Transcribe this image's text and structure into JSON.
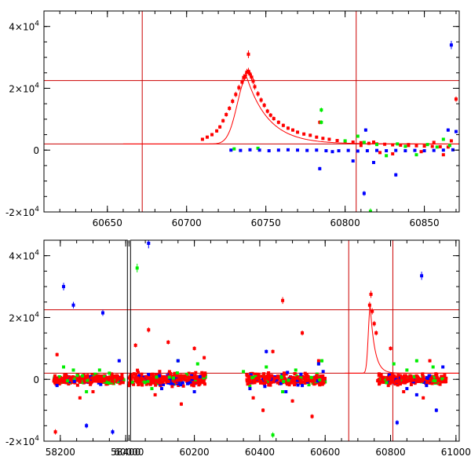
{
  "chart_data": [
    {
      "type": "scatter",
      "panel": "top",
      "xlim": [
        60610,
        60872
      ],
      "ylim": [
        -20000,
        45000
      ],
      "xticks": [
        {
          "value": 60650,
          "label": "60650"
        },
        {
          "value": 60700,
          "label": "60700"
        },
        {
          "value": 60750,
          "label": "60750"
        },
        {
          "value": 60800,
          "label": "60800"
        },
        {
          "value": 60850,
          "label": "60850"
        }
      ],
      "yticks": [
        {
          "value": 40000,
          "base": "4×10",
          "exp": "4"
        },
        {
          "value": 20000,
          "base": "2×10",
          "exp": "4"
        },
        {
          "value": 0,
          "base": "0",
          "exp": ""
        },
        {
          "value": -20000,
          "base": "-2×10",
          "exp": "4"
        }
      ],
      "vlines": [
        60672,
        60807
      ],
      "hlines": [
        22500,
        2000
      ],
      "model_curve": {
        "color": "#ff0000",
        "peak_x": 60738,
        "peak_y": 23500,
        "baseline": 2000,
        "rise": 6,
        "decay": 14,
        "x_start": 60660,
        "x_end": 60872
      },
      "colors": {
        "red": "#ff0000",
        "green": "#00ee00",
        "blue": "#0000ff",
        "lines": "#cc0000"
      },
      "series": [
        {
          "color_key": "red",
          "points": [
            [
              60710,
              3500
            ],
            [
              60713,
              4200
            ],
            [
              60716,
              5000
            ],
            [
              60719,
              6200
            ],
            [
              60721,
              7500
            ],
            [
              60723,
              9500
            ],
            [
              60725,
              11500
            ],
            [
              60727,
              13500
            ],
            [
              60729,
              15800
            ],
            [
              60731,
              18000
            ],
            [
              60733,
              20200
            ],
            [
              60735,
              22000
            ],
            [
              60736,
              23500
            ],
            [
              60737,
              24000
            ],
            [
              60738,
              25200
            ],
            [
              60739,
              25500
            ],
            [
              60740,
              24600
            ],
            [
              60741,
              23600
            ],
            [
              60742,
              22300
            ],
            [
              60743,
              20500
            ],
            [
              60745,
              18200
            ],
            [
              60747,
              16200
            ],
            [
              60749,
              14500
            ],
            [
              60751,
              12600
            ],
            [
              60753,
              11300
            ],
            [
              60755,
              10200
            ],
            [
              60758,
              9000
            ],
            [
              60761,
              8000
            ],
            [
              60764,
              7100
            ],
            [
              60767,
              6500
            ],
            [
              60770,
              5800
            ],
            [
              60774,
              5200
            ],
            [
              60778,
              4800
            ],
            [
              60782,
              4200
            ],
            [
              60786,
              3800
            ],
            [
              60790,
              3500
            ],
            [
              60795,
              3100
            ],
            [
              60800,
              2800
            ],
            [
              60805,
              2600
            ],
            [
              60810,
              2400
            ],
            [
              60815,
              2200
            ],
            [
              60820,
              2000
            ],
            [
              60825,
              1900
            ],
            [
              60830,
              1700
            ],
            [
              60835,
              1600
            ],
            [
              60840,
              1500
            ],
            [
              60845,
              1400
            ],
            [
              60850,
              1300
            ],
            [
              60855,
              1200
            ],
            [
              60860,
              1100
            ],
            [
              60865,
              1000
            ],
            [
              60870,
              16500
            ],
            [
              60739,
              31000
            ],
            [
              60784,
              9000
            ],
            [
              60810,
              1500
            ],
            [
              60818,
              2600
            ],
            [
              60822,
              -800
            ],
            [
              60830,
              -1200
            ],
            [
              60840,
              1800
            ],
            [
              60848,
              -500
            ],
            [
              60856,
              2500
            ],
            [
              60862,
              -1500
            ],
            [
              60867,
              3000
            ]
          ]
        },
        {
          "color_key": "green",
          "points": [
            [
              60785,
              13000
            ],
            [
              60785,
              9000
            ],
            [
              60800,
              3000
            ],
            [
              60808,
              4500
            ],
            [
              60812,
              2500
            ],
            [
              60820,
              1800
            ],
            [
              60826,
              -1800
            ],
            [
              60833,
              2000
            ],
            [
              60838,
              1200
            ],
            [
              60845,
              -1500
            ],
            [
              60852,
              1800
            ],
            [
              60858,
              1000
            ],
            [
              60862,
              3500
            ],
            [
              60866,
              1500
            ],
            [
              60816,
              -19800
            ],
            [
              60730,
              400
            ],
            [
              60745,
              600
            ]
          ]
        },
        {
          "color_key": "blue",
          "points": [
            [
              60728,
              0
            ],
            [
              60734,
              -100
            ],
            [
              60740,
              100
            ],
            [
              60746,
              0
            ],
            [
              60752,
              -200
            ],
            [
              60758,
              0
            ],
            [
              60764,
              100
            ],
            [
              60770,
              0
            ],
            [
              60776,
              -100
            ],
            [
              60782,
              0
            ],
            [
              60788,
              -200
            ],
            [
              60792,
              -500
            ],
            [
              60796,
              -200
            ],
            [
              60802,
              -100
            ],
            [
              60808,
              -300
            ],
            [
              60814,
              -200
            ],
            [
              60820,
              -100
            ],
            [
              60826,
              -200
            ],
            [
              60832,
              -100
            ],
            [
              60838,
              -200
            ],
            [
              60844,
              -100
            ],
            [
              60850,
              -200
            ],
            [
              60856,
              -100
            ],
            [
              60862,
              0
            ],
            [
              60868,
              100
            ],
            [
              60784,
              -6000
            ],
            [
              60812,
              -14000
            ],
            [
              60813,
              6500
            ],
            [
              60832,
              -8000
            ],
            [
              60867,
              34000
            ],
            [
              60865,
              6500
            ],
            [
              60870,
              6000
            ],
            [
              60805,
              -3500
            ],
            [
              60818,
              -4000
            ]
          ]
        }
      ]
    },
    {
      "type": "scatter",
      "panel": "bottom",
      "xlim": [
        58150,
        61010
      ],
      "ylim": [
        -20000,
        45000
      ],
      "breaks": [
        [
          58410,
          60000
        ]
      ],
      "xticks": [
        {
          "value": 58200,
          "label": "58200"
        },
        {
          "value": 58400,
          "label": "58400"
        },
        {
          "value": 60000,
          "label": "60000"
        },
        {
          "value": 60200,
          "label": "60200"
        },
        {
          "value": 60400,
          "label": "60400"
        },
        {
          "value": 60600,
          "label": "60600"
        },
        {
          "value": 60800,
          "label": "60800"
        },
        {
          "value": 61000,
          "label": "61000"
        }
      ],
      "yticks": [
        {
          "value": 40000,
          "base": "4×10",
          "exp": "4"
        },
        {
          "value": 20000,
          "base": "2×10",
          "exp": "4"
        },
        {
          "value": 0,
          "base": "0",
          "exp": ""
        },
        {
          "value": -20000,
          "base": "-2×10",
          "exp": "4"
        }
      ],
      "vlines": [
        60672,
        60807
      ],
      "hlines": [
        22500,
        2000
      ],
      "model_curve": {
        "color": "#ff0000",
        "peak_x": 60738,
        "peak_y": 23500,
        "baseline": 2000,
        "rise": 6,
        "decay": 14,
        "x_start": 60660,
        "x_end": 61010
      },
      "clusters": [
        {
          "x_range": [
            58180,
            58395
          ],
          "color_key": "red",
          "spread": 2500
        },
        {
          "x_range": [
            60000,
            60235
          ],
          "color_key": "red",
          "spread": 3500
        },
        {
          "x_range": [
            60360,
            60600
          ],
          "color_key": "red",
          "spread": 3000
        },
        {
          "x_range": [
            60760,
            60970
          ],
          "color_key": "red",
          "spread": 2500
        }
      ],
      "series": [
        {
          "color_key": "red",
          "points": [
            [
              58185,
              -17000
            ],
            [
              58190,
              8000
            ],
            [
              58260,
              -6000
            ],
            [
              58300,
              -4000
            ],
            [
              60020,
              11000
            ],
            [
              60060,
              16000
            ],
            [
              60080,
              -5000
            ],
            [
              60120,
              12000
            ],
            [
              60160,
              -8000
            ],
            [
              60200,
              10000
            ],
            [
              60230,
              7000
            ],
            [
              60380,
              -6000
            ],
            [
              60410,
              -10000
            ],
            [
              60440,
              9000
            ],
            [
              60470,
              25500
            ],
            [
              60500,
              -7000
            ],
            [
              60530,
              15000
            ],
            [
              60560,
              -12000
            ],
            [
              60580,
              6000
            ],
            [
              60740,
              27500
            ],
            [
              60736,
              24000
            ],
            [
              60744,
              22000
            ],
            [
              60750,
              18000
            ],
            [
              60756,
              15000
            ],
            [
              60800,
              10000
            ],
            [
              60840,
              -4000
            ],
            [
              60900,
              -6000
            ],
            [
              60920,
              6000
            ]
          ]
        },
        {
          "color_key": "green",
          "points": [
            [
              58210,
              4000
            ],
            [
              58240,
              3000
            ],
            [
              58280,
              -4000
            ],
            [
              58320,
              3000
            ],
            [
              58350,
              2000
            ],
            [
              60025,
              36000
            ],
            [
              60070,
              -3000
            ],
            [
              60150,
              6000
            ],
            [
              60210,
              5000
            ],
            [
              60350,
              2500
            ],
            [
              60420,
              4000
            ],
            [
              60470,
              -4000
            ],
            [
              60510,
              3000
            ],
            [
              60580,
              5000
            ],
            [
              60810,
              5000
            ],
            [
              60850,
              3000
            ],
            [
              60880,
              6000
            ],
            [
              60930,
              4000
            ],
            [
              60590,
              6000
            ],
            [
              60440,
              -18000
            ]
          ]
        },
        {
          "color_key": "blue",
          "points": [
            [
              58190,
              -2000
            ],
            [
              58210,
              30000
            ],
            [
              58240,
              24000
            ],
            [
              58280,
              -15000
            ],
            [
              58330,
              21500
            ],
            [
              58360,
              -17000
            ],
            [
              58380,
              6000
            ],
            [
              60060,
              44000
            ],
            [
              60100,
              -3000
            ],
            [
              60150,
              6000
            ],
            [
              60200,
              -4000
            ],
            [
              60370,
              -3000
            ],
            [
              60420,
              9000
            ],
            [
              60480,
              -4000
            ],
            [
              60530,
              -2000
            ],
            [
              60580,
              5000
            ],
            [
              60820,
              -14000
            ],
            [
              60850,
              -3000
            ],
            [
              60880,
              -5000
            ],
            [
              60910,
              -2000
            ],
            [
              60940,
              -10000
            ],
            [
              60960,
              4000
            ],
            [
              60895,
              33500
            ]
          ]
        }
      ]
    }
  ]
}
